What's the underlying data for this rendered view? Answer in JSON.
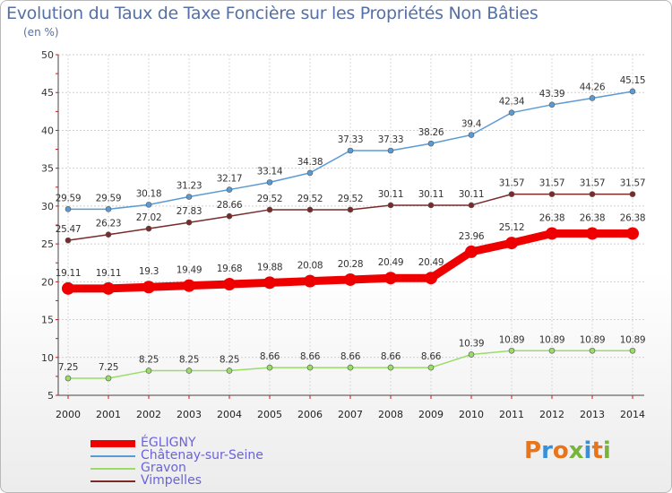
{
  "chart_data": {
    "type": "line",
    "title": "Evolution du Taux de Taxe Foncière sur les Propriétés Non Bâties",
    "unit_label": "(en %)",
    "x": [
      "2000",
      "2001",
      "2002",
      "2003",
      "2004",
      "2005",
      "2006",
      "2007",
      "2008",
      "2009",
      "2010",
      "2011",
      "2012",
      "2013",
      "2014"
    ],
    "ylim": [
      5,
      50
    ],
    "yticks": [
      5,
      10,
      15,
      20,
      25,
      30,
      35,
      40,
      45,
      50
    ],
    "grid": true,
    "legend_position": "bottom-left",
    "series": [
      {
        "name": "Châtenay-sur-Seine",
        "color": "#5b9bd5",
        "values": [
          29.59,
          29.59,
          30.18,
          31.23,
          32.17,
          33.14,
          34.38,
          37.33,
          37.33,
          38.26,
          39.4,
          42.34,
          43.39,
          44.26,
          45.15
        ],
        "labels": [
          "29.59",
          "29.59",
          "30.18",
          "31.23",
          "32.17",
          "33.14",
          "34.38",
          "37.33",
          "37.33",
          "38.26",
          "39.4",
          "42.34",
          "43.39",
          "44.26",
          "45.15"
        ]
      },
      {
        "name": "Vimpelles",
        "color": "#7b2a2a",
        "values": [
          25.47,
          26.23,
          27.02,
          27.83,
          28.66,
          29.52,
          29.52,
          29.52,
          30.11,
          30.11,
          30.11,
          31.57,
          31.57,
          31.57,
          31.57
        ],
        "labels": [
          "25.47",
          "26.23",
          "27.02",
          "27.83",
          "28.66",
          "29.52",
          "29.52",
          "29.52",
          "30.11",
          "30.11",
          "30.11",
          "31.57",
          "31.57",
          "31.57",
          "31.57"
        ]
      },
      {
        "name": "ÉGLIGNY",
        "color": "#ee0000",
        "values": [
          19.11,
          19.11,
          19.3,
          19.49,
          19.68,
          19.88,
          20.08,
          20.28,
          20.49,
          20.49,
          23.96,
          25.12,
          26.38,
          26.38,
          26.38
        ],
        "labels": [
          "19.11",
          "19.11",
          "19.3",
          "19.49",
          "19.68",
          "19.88",
          "20.08",
          "20.28",
          "20.49",
          "20.49",
          "23.96",
          "25.12",
          "26.38",
          "26.38",
          "26.38"
        ]
      },
      {
        "name": "Gravon",
        "color": "#99dd66",
        "values": [
          7.25,
          7.25,
          8.25,
          8.25,
          8.25,
          8.66,
          8.66,
          8.66,
          8.66,
          8.66,
          10.39,
          10.89,
          10.89,
          10.89,
          10.89
        ],
        "labels": [
          "7.25",
          "7.25",
          "8.25",
          "8.25",
          "8.25",
          "8.66",
          "8.66",
          "8.66",
          "8.66",
          "8.66",
          "10.39",
          "10.89",
          "10.89",
          "10.89",
          "10.89"
        ]
      }
    ],
    "legend": [
      {
        "name": "ÉGLIGNY",
        "color": "#ee0000"
      },
      {
        "name": "Châtenay-sur-Seine",
        "color": "#5b9bd5"
      },
      {
        "name": "Gravon",
        "color": "#99dd66"
      },
      {
        "name": "Vimpelles",
        "color": "#7b2a2a"
      }
    ]
  },
  "logo": {
    "text": "Proxiti",
    "letter_colors": [
      "#e8741c",
      "#3a8fd6",
      "#e8741c",
      "#78b43c",
      "#3a8fd6",
      "#e8741c",
      "#78b43c"
    ]
  }
}
